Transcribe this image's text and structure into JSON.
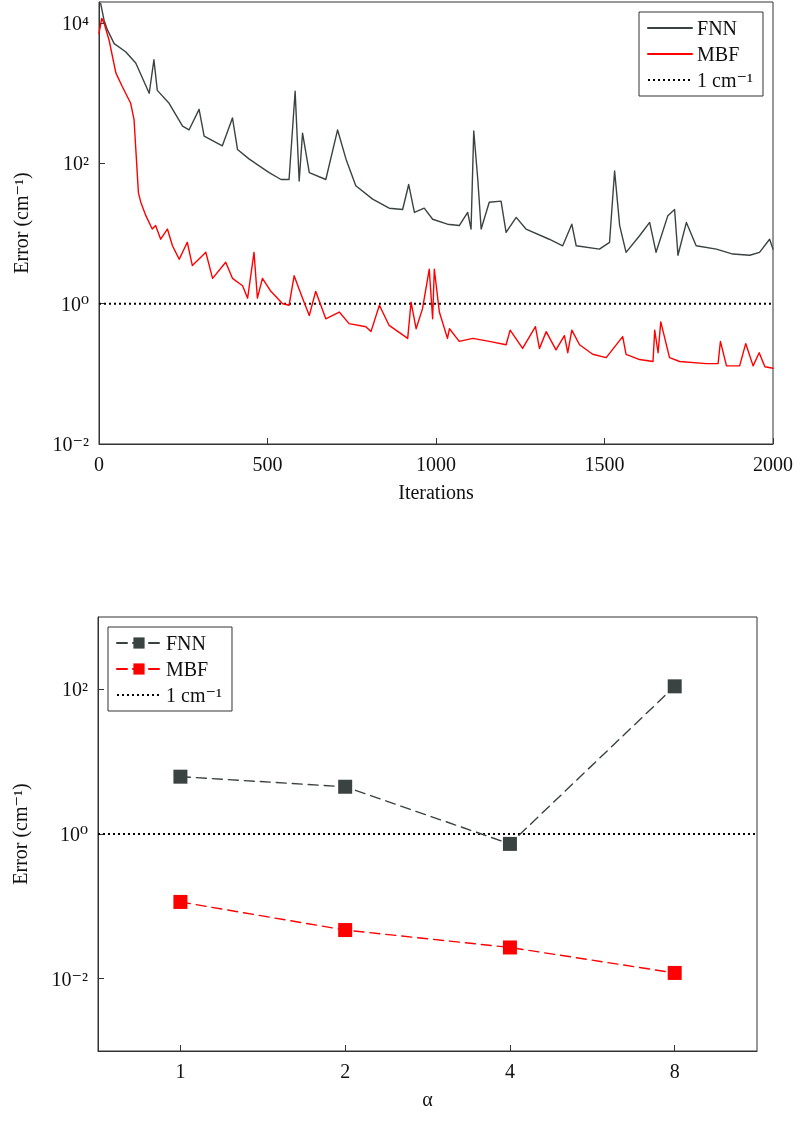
{
  "chart_data": [
    {
      "type": "line",
      "xlabel": "Iterations",
      "ylabel": "Error (cm⁻¹)",
      "log": "y",
      "xlim": [
        0,
        2000
      ],
      "ylim": [
        0.01,
        20000
      ],
      "xticks": [
        0,
        500,
        1000,
        1500,
        2000
      ],
      "yticks": [
        {
          "value": 0.01,
          "label": "10⁻²"
        },
        {
          "value": 1,
          "label": "10⁰"
        },
        {
          "value": 100,
          "label": "10²"
        },
        {
          "value": 10000,
          "label": "10⁴"
        }
      ],
      "legend": "top right",
      "grid": false,
      "marker": "none",
      "series": [
        {
          "name": "FNN",
          "color": "#3a4242",
          "x": [
            5,
            15,
            25,
            45,
            79,
            109,
            149,
            163,
            173,
            208,
            248,
            267,
            297,
            312,
            366,
            396,
            411,
            446,
            505,
            540,
            564,
            582,
            594,
            604,
            624,
            673,
            708,
            733,
            762,
            812,
            861,
            901,
            919,
            936,
            965,
            990,
            1034,
            1069,
            1094,
            1104,
            1112,
            1124,
            1134,
            1158,
            1193,
            1208,
            1238,
            1267,
            1336,
            1376,
            1403,
            1416,
            1485,
            1515,
            1530,
            1545,
            1564,
            1604,
            1634,
            1653,
            1688,
            1708,
            1718,
            1743,
            1772,
            1832,
            1881,
            1931,
            1960,
            1990,
            2000
          ],
          "values": [
            19000,
            11000,
            8000,
            5100,
            3900,
            2700,
            1000,
            3000,
            1100,
            720,
            340,
            300,
            590,
            245,
            178,
            445,
            158,
            115,
            74,
            59,
            59,
            1070,
            56,
            270,
            74,
            59,
            300,
            115,
            48,
            31,
            23,
            22,
            50,
            20,
            23,
            16,
            13.6,
            13,
            20,
            11.6,
            290,
            59,
            11.6,
            28,
            29,
            10.4,
            17,
            11.6,
            8.3,
            6.7,
            13.6,
            6.7,
            6,
            7.5,
            78,
            13,
            5.4,
            9.3,
            14.4,
            5.4,
            18,
            22,
            4.9,
            14.4,
            6.7,
            6,
            5.1,
            4.9,
            5.4,
            8.3,
            6
          ]
        },
        {
          "name": "MBF",
          "color": "#ff0000",
          "x": [
            0,
            8,
            15,
            30,
            50,
            69,
            94,
            104,
            117,
            124,
            139,
            158,
            168,
            183,
            203,
            218,
            238,
            262,
            277,
            317,
            337,
            376,
            396,
            426,
            441,
            460,
            470,
            485,
            510,
            545,
            564,
            579,
            604,
            624,
            643,
            673,
            713,
            742,
            792,
            807,
            832,
            861,
            916,
            926,
            941,
            960,
            980,
            990,
            995,
            1010,
            1034,
            1040,
            1069,
            1109,
            1158,
            1208,
            1220,
            1257,
            1295,
            1307,
            1327,
            1356,
            1381,
            1391,
            1403,
            1426,
            1465,
            1505,
            1554,
            1564,
            1604,
            1644,
            1649,
            1659,
            1667,
            1693,
            1723,
            1802,
            1837,
            1844,
            1862,
            1901,
            1919,
            1941,
            1959,
            1976,
            2000
          ],
          "values": [
            7100,
            11700,
            10000,
            5700,
            1950,
            1250,
            720,
            420,
            38,
            28,
            18,
            11.6,
            13,
            8.3,
            11.6,
            6.7,
            4.3,
            7.5,
            3.5,
            5.4,
            2.3,
            3.9,
            2.3,
            1.8,
            1.2,
            5.4,
            1.2,
            2.3,
            1.5,
            1.0,
            0.95,
            2.5,
            1.2,
            0.68,
            1.5,
            0.61,
            0.76,
            0.52,
            0.47,
            0.4,
            0.95,
            0.49,
            0.32,
            1.05,
            0.44,
            0.85,
            3.1,
            0.61,
            3.1,
            0.76,
            0.32,
            0.44,
            0.29,
            0.32,
            0.29,
            0.26,
            0.42,
            0.23,
            0.47,
            0.23,
            0.4,
            0.22,
            0.35,
            0.2,
            0.42,
            0.26,
            0.19,
            0.17,
            0.34,
            0.19,
            0.16,
            0.15,
            0.42,
            0.2,
            0.55,
            0.17,
            0.15,
            0.14,
            0.14,
            0.29,
            0.13,
            0.13,
            0.27,
            0.13,
            0.2,
            0.126,
            0.12
          ]
        }
      ],
      "ref_lines": [
        {
          "axis": "y",
          "value": 1,
          "label": "1 cm⁻¹",
          "color": "#000000",
          "line_style": "dotted"
        }
      ]
    },
    {
      "type": "line",
      "xlabel": "α",
      "ylabel": "Error (cm⁻¹)",
      "log": "xy",
      "xlim": [
        0.707,
        11.31
      ],
      "ylim": [
        0.001,
        1000
      ],
      "xticks": [
        1,
        2,
        4,
        8
      ],
      "yticks": [
        {
          "value": 0.01,
          "label": "10⁻²"
        },
        {
          "value": 1,
          "label": "10⁰"
        },
        {
          "value": 100,
          "label": "10²"
        }
      ],
      "legend": "top left",
      "grid": false,
      "marker": "square",
      "line_style": "dashed",
      "x": [
        1,
        2,
        4,
        8
      ],
      "series": [
        {
          "name": "FNN",
          "color": "#3a4242",
          "values": [
            6.2,
            4.5,
            0.73,
            110
          ]
        },
        {
          "name": "MBF",
          "color": "#ff0000",
          "values": [
            0.115,
            0.047,
            0.027,
            0.012
          ]
        }
      ],
      "ref_lines": [
        {
          "axis": "y",
          "value": 1,
          "label": "1 cm⁻¹",
          "color": "#000000",
          "line_style": "dotted"
        }
      ]
    }
  ]
}
